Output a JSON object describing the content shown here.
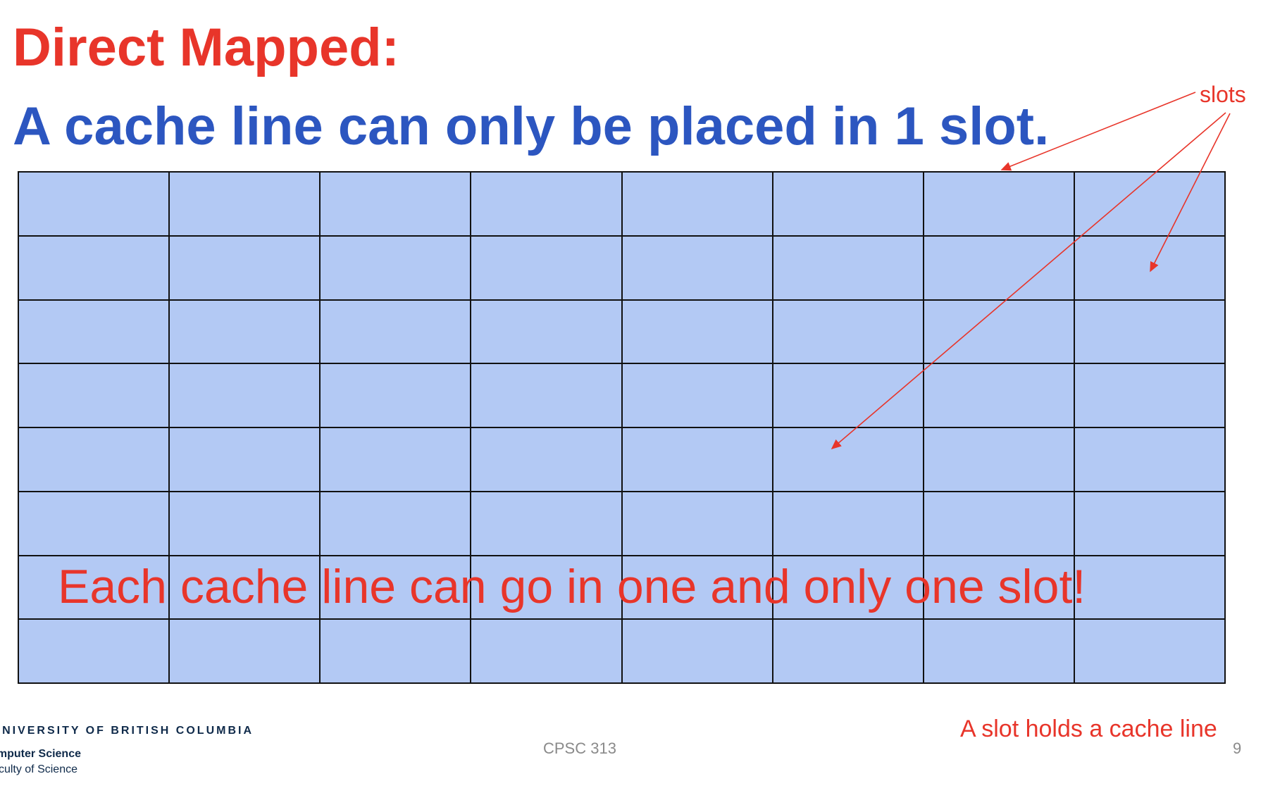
{
  "slide": {
    "title": "Direct Mapped:",
    "subtitle": "A cache line can only be placed in 1 slot.",
    "grid": {
      "rows": 8,
      "columns": 8
    },
    "callout_label": "slots",
    "overlay_note": "Each cache line can go in one and only one slot!",
    "footnote": "A slot holds a cache line",
    "course": "CPSC 313",
    "page_number": "9"
  },
  "branding": {
    "university": "THE UNIVERSITY OF BRITISH COLUMBIA",
    "department": "Computer Science",
    "faculty": "Faculty of Science"
  },
  "colors": {
    "title": "#e8352a",
    "subtitle": "#2c56c0",
    "cell_fill": "#b3c9f4",
    "grid_lines": "#111111",
    "annotation": "#e8352a",
    "muted_text": "#8a8a8a"
  }
}
